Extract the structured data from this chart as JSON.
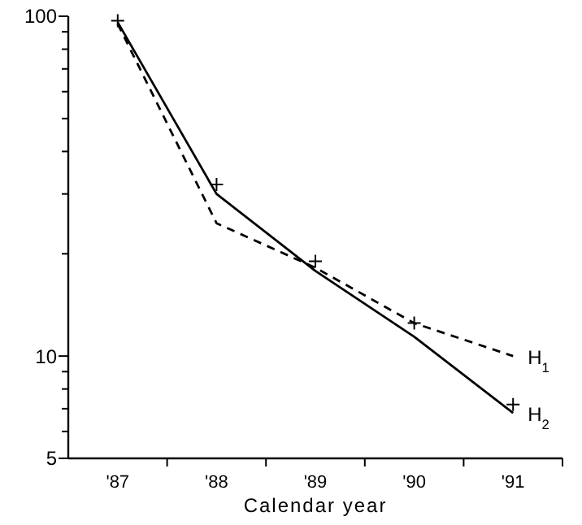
{
  "chart_data": {
    "type": "line",
    "xlabel": "Calendar year",
    "log": "y",
    "legend": false,
    "grid": false,
    "categories": [
      "'87",
      "'88",
      "'89",
      "'90",
      "'91"
    ],
    "ylim": [
      5,
      100
    ],
    "yticks": [
      5,
      {
        "value": 6,
        "label": null
      },
      {
        "value": 7,
        "label": null
      },
      {
        "value": 8,
        "label": null
      },
      {
        "value": 9,
        "label": null
      },
      10,
      {
        "value": 20,
        "label": null
      },
      {
        "value": 30,
        "label": null
      },
      {
        "value": 40,
        "label": null
      },
      {
        "value": 50,
        "label": null
      },
      {
        "value": 60,
        "label": null
      },
      {
        "value": 70,
        "label": null
      },
      {
        "value": 80,
        "label": null
      },
      {
        "value": 90,
        "label": null
      },
      100
    ],
    "series": [
      {
        "name": "H$_{1}$",
        "color": "#000000",
        "line_style": "dashed",
        "marker": "none",
        "values": [
          95,
          24.6,
          18.2,
          12.5,
          10
        ]
      },
      {
        "name": "H$_{2}$",
        "color": "#000000",
        "line_style": "solid",
        "marker": "none",
        "values": [
          96,
          30,
          17.8,
          11.4,
          6.8
        ]
      },
      {
        "type": "scatter",
        "color": "#000000",
        "marker": "cross",
        "values": [
          97,
          32,
          19,
          12.5,
          7.2
        ]
      }
    ]
  }
}
